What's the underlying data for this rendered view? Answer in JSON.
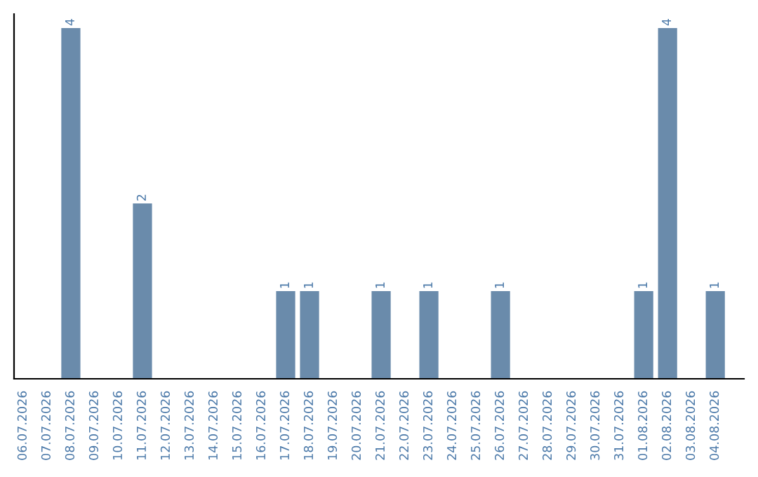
{
  "chart_data": {
    "type": "bar",
    "categories": [
      "06.07.2026",
      "07.07.2026",
      "08.07.2026",
      "09.07.2026",
      "10.07.2026",
      "11.07.2026",
      "12.07.2026",
      "13.07.2026",
      "14.07.2026",
      "15.07.2026",
      "16.07.2026",
      "17.07.2026",
      "18.07.2026",
      "19.07.2026",
      "20.07.2026",
      "21.07.2026",
      "22.07.2026",
      "23.07.2026",
      "24.07.2026",
      "25.07.2026",
      "26.07.2026",
      "27.07.2026",
      "28.07.2026",
      "29.07.2026",
      "30.07.2026",
      "31.07.2026",
      "01.08.2026",
      "02.08.2026",
      "03.08.2026",
      "04.08.2026"
    ],
    "values": [
      0,
      0,
      4,
      0,
      0,
      2,
      0,
      0,
      0,
      0,
      0,
      1,
      1,
      0,
      0,
      1,
      0,
      1,
      0,
      0,
      1,
      0,
      0,
      0,
      0,
      0,
      1,
      4,
      0,
      1
    ],
    "value_labels": [
      null,
      null,
      "4",
      null,
      null,
      "2",
      null,
      null,
      null,
      null,
      null,
      "1",
      "1",
      null,
      null,
      "1",
      null,
      "1",
      null,
      null,
      "1",
      null,
      null,
      null,
      null,
      null,
      "1",
      "4",
      null,
      "1"
    ],
    "color": "#6a8bab",
    "tick_labels": "x",
    "grid": false
  }
}
